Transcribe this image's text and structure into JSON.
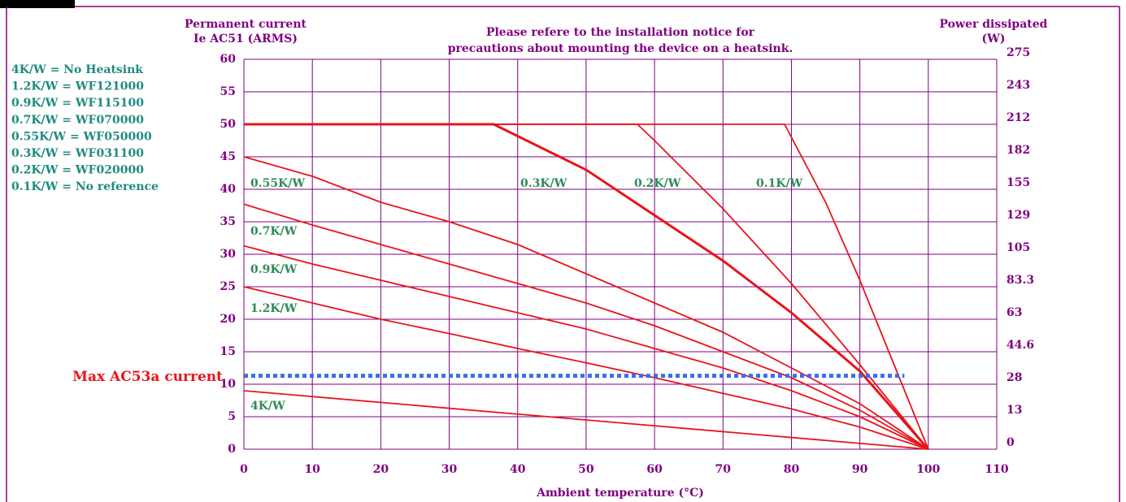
{
  "chart_data": {
    "type": "line",
    "y_label_lines": [
      "Permanent current",
      "Ie AC51 (ARMS)"
    ],
    "note_lines": [
      "Please refere to the installation notice for",
      "precautions about mounting the device on a heatsink."
    ],
    "y2_label_lines": [
      "Power dissipated",
      "(W)"
    ],
    "x_label": "Ambient temperature (°C)",
    "legend_lines": [
      "4K/W = No Heatsink",
      "1.2K/W = WF121000",
      "0.9K/W = WF115100",
      "0.7K/W = WF070000",
      "0.55K/W = WF050000",
      "0.3K/W = WF031100",
      "0.2K/W = WF020000",
      "0.1K/W = No reference"
    ],
    "xlim": [
      0,
      110
    ],
    "xticks": [
      0,
      10,
      20,
      30,
      40,
      50,
      60,
      70,
      80,
      90,
      100,
      110
    ],
    "ylim": [
      0,
      60
    ],
    "yticks": [
      0,
      5,
      10,
      15,
      20,
      25,
      30,
      35,
      40,
      45,
      50,
      55,
      60
    ],
    "y2ticks": [
      0,
      13,
      28,
      44.6,
      63,
      83.3,
      105,
      129,
      155,
      182,
      212,
      243,
      275
    ],
    "grid": true,
    "series": [
      {
        "name": "4K/W",
        "color": "#e8141b",
        "x": [
          0,
          100
        ],
        "values": [
          9,
          0
        ]
      },
      {
        "name": "1.2K/W",
        "color": "#e8141b",
        "x": [
          0,
          10,
          20,
          30,
          40,
          50,
          60,
          70,
          80,
          90,
          100
        ],
        "values": [
          25,
          22.5,
          20,
          17.8,
          15.5,
          13.3,
          11,
          8.6,
          6.2,
          3.4,
          0
        ]
      },
      {
        "name": "0.9K/W",
        "color": "#e8141b",
        "x": [
          0,
          10,
          20,
          30,
          40,
          50,
          60,
          70,
          80,
          90,
          100
        ],
        "values": [
          31.3,
          28.5,
          26,
          23.5,
          21,
          18.5,
          15.5,
          12.5,
          9,
          5,
          0
        ]
      },
      {
        "name": "0.7K/W",
        "color": "#e8141b",
        "x": [
          0,
          10,
          20,
          30,
          40,
          50,
          60,
          70,
          80,
          90,
          100
        ],
        "values": [
          37.7,
          34.5,
          31.5,
          28.5,
          25.5,
          22.5,
          19,
          15,
          11,
          6,
          0
        ]
      },
      {
        "name": "0.55K/W",
        "color": "#e8141b",
        "x": [
          0,
          10,
          20,
          30,
          40,
          50,
          60,
          70,
          80,
          90,
          100
        ],
        "values": [
          45,
          42,
          38,
          35,
          31.5,
          27,
          22.5,
          18,
          12.5,
          7,
          0
        ]
      },
      {
        "name": "0.3K/W",
        "color": "#e8141b",
        "x": [
          0,
          36.5,
          50,
          60,
          70,
          80,
          90,
          100
        ],
        "values": [
          50,
          50,
          43,
          36,
          29,
          21,
          12,
          0
        ]
      },
      {
        "name": "0.2K/W",
        "color": "#e8141b",
        "x": [
          0,
          57.5,
          60,
          70,
          80,
          90,
          100
        ],
        "values": [
          50,
          50,
          47.5,
          37,
          25.5,
          13,
          0
        ]
      },
      {
        "name": "0.1K/W",
        "color": "#e8141b",
        "x": [
          0,
          79,
          85,
          90,
          95,
          100
        ],
        "values": [
          50,
          50,
          38,
          26,
          13,
          0
        ]
      }
    ],
    "reference_line": {
      "text": "Max AC53a current",
      "value": 11.3,
      "x_end": 96.5,
      "color": "#3b6ee8"
    }
  }
}
